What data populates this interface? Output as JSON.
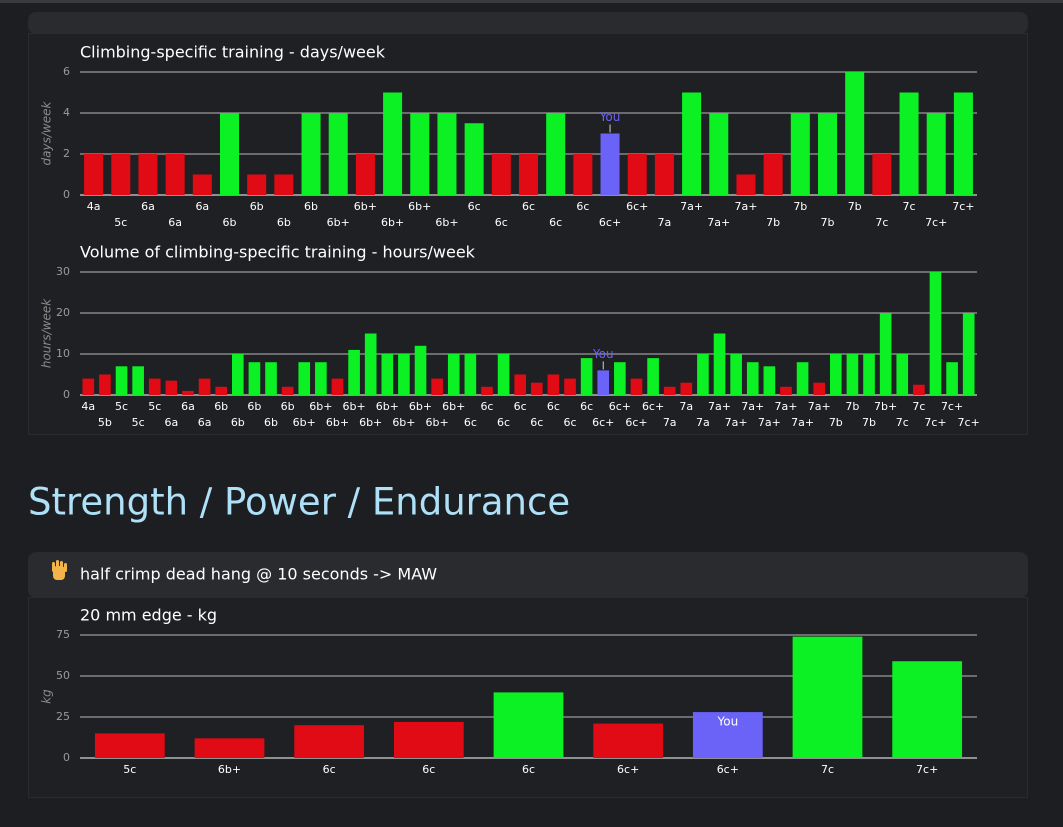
{
  "heading": "Strength / Power / Endurance",
  "card_header": "half crimp dead hang @ 10 seconds -> MAW",
  "chart_data": [
    {
      "type": "bar",
      "title": "Climbing-specific training - days/week",
      "y_label": "days/week",
      "categories": [
        "4a",
        "5c",
        "6a",
        "6a",
        "6a",
        "6b",
        "6b",
        "6b",
        "6b",
        "6b+",
        "6b+",
        "6b+",
        "6b+",
        "6b+",
        "6c",
        "6c",
        "6c",
        "6c",
        "6c",
        "6c+",
        "6c+",
        "7a",
        "7a+",
        "7a+",
        "7a+",
        "7b",
        "7b",
        "7b",
        "7b",
        "7c",
        "7c",
        "7c+",
        "7c+"
      ],
      "values": [
        2,
        2,
        2,
        2,
        1,
        4,
        1,
        1,
        4,
        4,
        2,
        5,
        4,
        4,
        3.5,
        2,
        2,
        4,
        2,
        3,
        2,
        2,
        5,
        4,
        1,
        2,
        4,
        4,
        6,
        2,
        5,
        4,
        5
      ],
      "colors": [
        "#e00b14",
        "#e00b14",
        "#e00b14",
        "#e00b14",
        "#e00b14",
        "#0bf123",
        "#e00b14",
        "#e00b14",
        "#0bf123",
        "#0bf123",
        "#e00b14",
        "#0bf123",
        "#0bf123",
        "#0bf123",
        "#0bf123",
        "#e00b14",
        "#e00b14",
        "#0bf123",
        "#e00b14",
        "#6b63f7",
        "#e00b14",
        "#e00b14",
        "#0bf123",
        "#0bf123",
        "#e00b14",
        "#e00b14",
        "#0bf123",
        "#0bf123",
        "#0bf123",
        "#e00b14",
        "#0bf123",
        "#0bf123",
        "#0bf123"
      ],
      "annotation": {
        "text": "You",
        "color": "#6b63f7",
        "position": "above"
      },
      "ylim": [
        0,
        6
      ],
      "yticks": [
        0,
        2,
        4,
        6
      ],
      "grid": true
    },
    {
      "type": "bar",
      "title": "Volume of climbing-specific training - hours/week",
      "y_label": "hours/week",
      "categories": [
        "4a",
        "5b",
        "5c",
        "5c",
        "5c",
        "6a",
        "6a",
        "6a",
        "6b",
        "6b",
        "6b",
        "6b",
        "6b",
        "6b+",
        "6b+",
        "6b+",
        "6b+",
        "6b+",
        "6b+",
        "6b+",
        "6b+",
        "6b+",
        "6b+",
        "6c",
        "6c",
        "6c",
        "6c",
        "6c",
        "6c",
        "6c",
        "6c",
        "6c+",
        "6c+",
        "6c+",
        "6c+",
        "7a",
        "7a",
        "7a",
        "7a+",
        "7a+",
        "7a+",
        "7a+",
        "7a+",
        "7a+",
        "7a+",
        "7b",
        "7b",
        "7b",
        "7b+",
        "7c",
        "7c",
        "7c+",
        "7c+",
        "7c+"
      ],
      "values": [
        4,
        5,
        7,
        7,
        4,
        3.5,
        1,
        4,
        2,
        10,
        8,
        8,
        2,
        8,
        8,
        4,
        11,
        15,
        10,
        10,
        12,
        4,
        10,
        10,
        2,
        10,
        5,
        3,
        5,
        4,
        9,
        6,
        8,
        4,
        9,
        2,
        3,
        10,
        15,
        10,
        8,
        7,
        2,
        8,
        3,
        10,
        10,
        10,
        20,
        10,
        2.5,
        30,
        8,
        20
      ],
      "colors": [
        "#e00b14",
        "#e00b14",
        "#0bf123",
        "#0bf123",
        "#e00b14",
        "#e00b14",
        "#e00b14",
        "#e00b14",
        "#e00b14",
        "#0bf123",
        "#0bf123",
        "#0bf123",
        "#e00b14",
        "#0bf123",
        "#0bf123",
        "#e00b14",
        "#0bf123",
        "#0bf123",
        "#0bf123",
        "#0bf123",
        "#0bf123",
        "#e00b14",
        "#0bf123",
        "#0bf123",
        "#e00b14",
        "#0bf123",
        "#e00b14",
        "#e00b14",
        "#e00b14",
        "#e00b14",
        "#0bf123",
        "#6b63f7",
        "#0bf123",
        "#e00b14",
        "#0bf123",
        "#e00b14",
        "#e00b14",
        "#0bf123",
        "#0bf123",
        "#0bf123",
        "#0bf123",
        "#0bf123",
        "#e00b14",
        "#0bf123",
        "#e00b14",
        "#0bf123",
        "#0bf123",
        "#0bf123",
        "#0bf123",
        "#0bf123",
        "#e00b14",
        "#0bf123",
        "#0bf123",
        "#0bf123"
      ],
      "annotation": {
        "text": "You",
        "color": "#6b63f7",
        "position": "above"
      },
      "ylim": [
        0,
        30
      ],
      "yticks": [
        0,
        10,
        20,
        30
      ],
      "grid": true
    },
    {
      "type": "bar",
      "title": "20 mm edge - kg",
      "y_label": "kg",
      "categories": [
        "5c",
        "6b+",
        "6c",
        "6c",
        "6c",
        "6c+",
        "6c+",
        "7c",
        "7c+"
      ],
      "values": [
        15,
        12,
        20,
        22,
        40,
        21,
        28,
        74,
        59
      ],
      "colors": [
        "#e00b14",
        "#e00b14",
        "#e00b14",
        "#e00b14",
        "#0bf123",
        "#e00b14",
        "#6b63f7",
        "#0bf123",
        "#0bf123"
      ],
      "annotation": {
        "text": "You",
        "color": "#6b63f7",
        "position": "inside"
      },
      "ylim": [
        0,
        75
      ],
      "yticks": [
        0,
        25,
        50,
        75
      ],
      "grid": true
    }
  ]
}
